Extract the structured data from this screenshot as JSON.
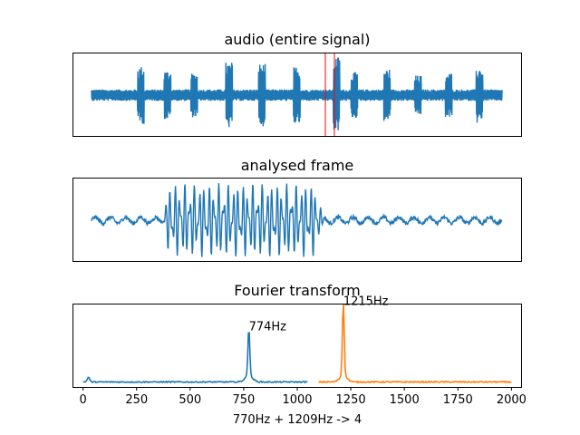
{
  "colors": {
    "blue": "#1f77b4",
    "orange": "#ff7f0e",
    "red": "#ff0000",
    "axes": "#000000"
  },
  "chart_data": [
    {
      "type": "line",
      "title": "audio (entire signal)",
      "xticks": "hidden",
      "yticks": "hidden",
      "series": [
        {
          "values": "dense audio waveform: steady low-level noise band with 12 tone bursts of larger amplitude"
        }
      ],
      "bursts": [
        {
          "center": 0.12,
          "amp": 0.35
        },
        {
          "center": 0.185,
          "amp": 0.3
        },
        {
          "center": 0.25,
          "amp": 0.27
        },
        {
          "center": 0.335,
          "amp": 0.4
        },
        {
          "center": 0.415,
          "amp": 0.38
        },
        {
          "center": 0.5,
          "amp": 0.35
        },
        {
          "center": 0.597,
          "amp": 0.47
        },
        {
          "center": 0.64,
          "amp": 0.28
        },
        {
          "center": 0.72,
          "amp": 0.32
        },
        {
          "center": 0.795,
          "amp": 0.24
        },
        {
          "center": 0.87,
          "amp": 0.27
        },
        {
          "center": 0.945,
          "amp": 0.34
        }
      ],
      "highlight_window": {
        "start": 0.595,
        "end": 0.66,
        "color": "red"
      }
    },
    {
      "type": "line",
      "title": "analysed frame",
      "xticks": "hidden",
      "yticks": "hidden",
      "series": [
        {
          "values": "zoomed waveform of selected frame: low noise, large oscillating tone burst in the middle, low noise"
        }
      ],
      "burst_range": [
        0.17,
        0.565
      ]
    },
    {
      "type": "line",
      "title": "Fourier transform",
      "xlabel": "770Hz + 1209Hz -> 4",
      "xlim": [
        -45,
        2045
      ],
      "xticks": [
        0,
        250,
        500,
        750,
        1000,
        1250,
        1500,
        1750,
        2000
      ],
      "yticks": "hidden",
      "series": [
        {
          "color": "blue",
          "x_range": [
            0,
            1050
          ],
          "peak_x": 774,
          "peak_value": 0.62
        },
        {
          "color": "orange",
          "x_range": [
            1100,
            2000
          ],
          "peak_x": 1215,
          "peak_value": 0.95
        }
      ],
      "annotations": [
        {
          "text": "774Hz",
          "x": 774,
          "y": 0.62
        },
        {
          "text": "1215Hz",
          "x": 1215,
          "y": 0.95
        }
      ]
    }
  ]
}
